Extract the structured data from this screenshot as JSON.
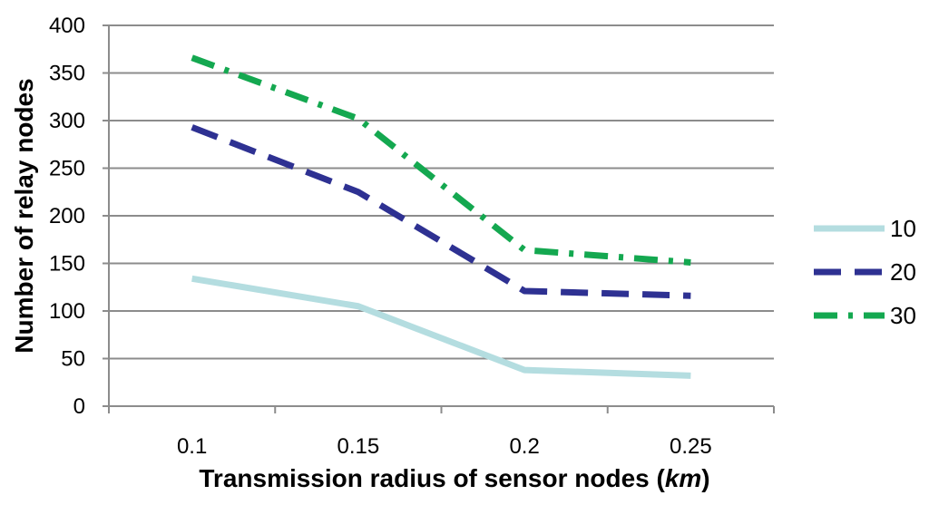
{
  "chart_data": {
    "type": "line",
    "title": "",
    "xlabel": "Transmission radius of sensor nodes (km)",
    "xlabel_prefix": "Transmission radius of sensor nodes (",
    "xlabel_unit": "km",
    "xlabel_suffix": ")",
    "ylabel": "Number of relay nodes",
    "categories": [
      "0.1",
      "0.15",
      "0.2",
      "0.25"
    ],
    "ylim": [
      0,
      400
    ],
    "yticks": [
      "0",
      "50",
      "100",
      "150",
      "200",
      "250",
      "300",
      "350",
      "400"
    ],
    "grid": "horizontal",
    "legend_position": "right",
    "series": [
      {
        "name": "10",
        "values": [
          134,
          105,
          38,
          32
        ],
        "color": "#b4dde0",
        "dash": "solid"
      },
      {
        "name": "20",
        "values": [
          293,
          225,
          121,
          116
        ],
        "color": "#2e3192",
        "dash": "dash"
      },
      {
        "name": "30",
        "values": [
          366,
          302,
          164,
          151
        ],
        "color": "#14a850",
        "dash": "dashdot"
      }
    ]
  }
}
